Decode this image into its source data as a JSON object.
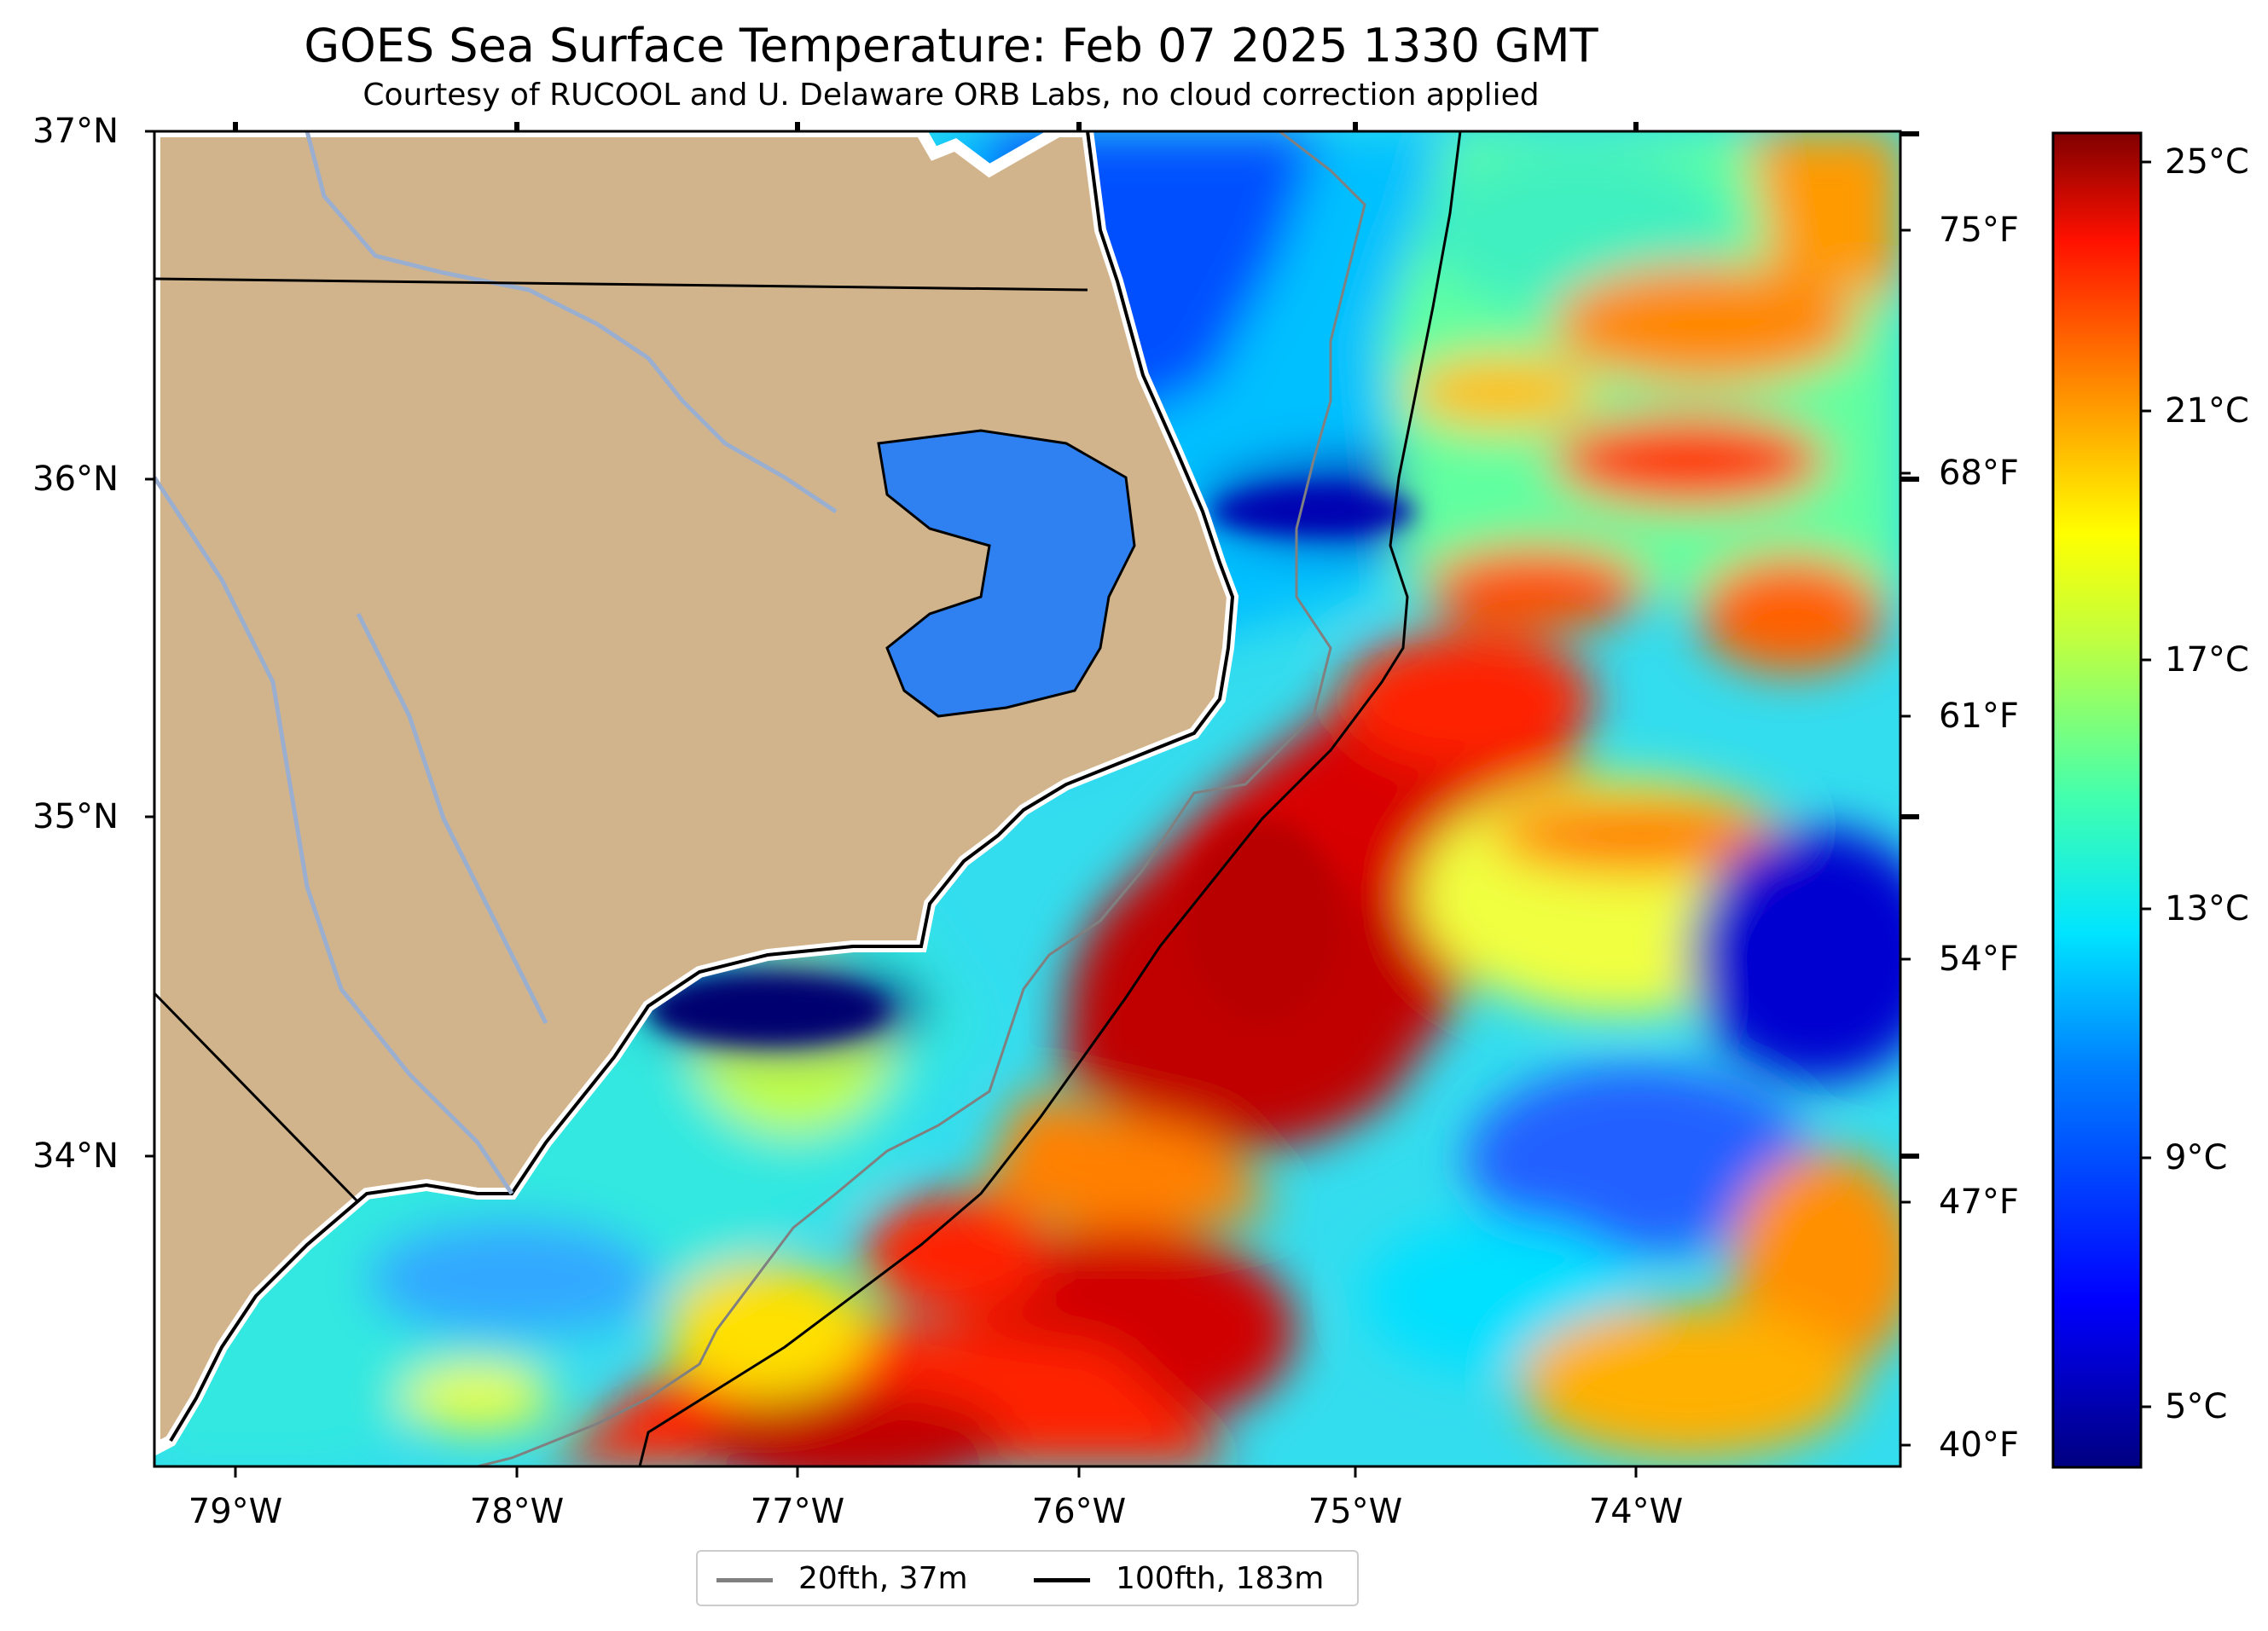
{
  "title": "GOES Sea Surface Temperature: Feb 07 2025 1330 GMT",
  "subtitle": "Courtesy of RUCOOL and U. Delaware ORB Labs, no cloud correction applied",
  "lat_labels": [
    "37°N",
    "36°N",
    "35°N",
    "34°N"
  ],
  "lon_labels": [
    "79°W",
    "78°W",
    "77°W",
    "76°W",
    "75°W",
    "74°W"
  ],
  "fahrenheit_labels": [
    "75°F",
    "68°F",
    "61°F",
    "54°F",
    "47°F",
    "40°F"
  ],
  "colorbar": {
    "labels": [
      "25°C",
      "21°C",
      "17°C",
      "13°C",
      "9°C",
      "5°C"
    ],
    "colors": [
      "#7f0000",
      "#ff0000",
      "#ff8000",
      "#ffff00",
      "#80ff80",
      "#00ffff",
      "#0080ff",
      "#0000ff",
      "#000080"
    ]
  },
  "legend": {
    "items": [
      {
        "label": "20fth, 37m",
        "color": "#808080"
      },
      {
        "label": "100fth, 183m",
        "color": "#000000"
      }
    ]
  },
  "colors": {
    "land": "#d2b48c",
    "river": "#9aaed0",
    "coast_white": "#ffffff"
  }
}
